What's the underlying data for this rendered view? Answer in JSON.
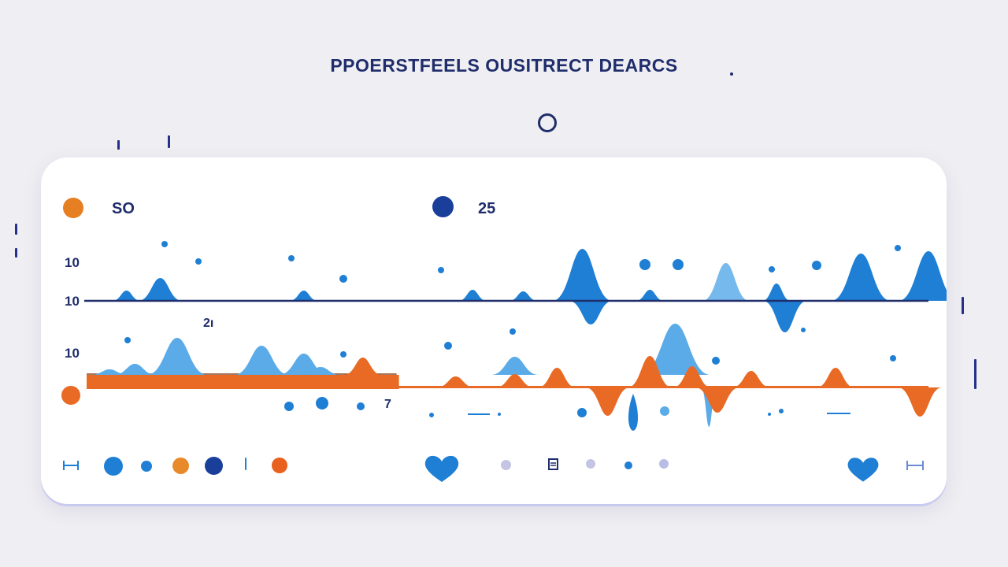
{
  "header": {
    "title": "PPOERSTFEELS OUSITRECT DEARCS",
    "title_suffix": "."
  },
  "legend": [
    {
      "label": "SO",
      "color": "#e67e22"
    },
    {
      "label": "25",
      "color": "#1a3f9a"
    }
  ],
  "axis_labels": [
    "10",
    "10",
    "10"
  ],
  "annotations": [
    "2ı",
    "7"
  ],
  "colors": {
    "title": "#1f2d6b",
    "blue": "#1e7fd4",
    "light_blue": "#5aabe8",
    "pale_blue": "#76b9ec",
    "orange": "#e86a24",
    "navy": "#1a3f9a",
    "axis": "#1f2d6b",
    "card": "#ffffff",
    "background": "#efeef2"
  },
  "chart_data": {
    "type": "area",
    "title": "PPOERSTFEELS OUSITRECT DEARCS",
    "y_tick_labels": [
      "10",
      "10",
      "10"
    ],
    "legend_placement": "top-left",
    "x_range": [
      0,
      100
    ],
    "grid": false,
    "series": [
      {
        "name": "SO",
        "color": "#e86a24",
        "baseline_band": true,
        "peaks": [
          {
            "x": 33,
            "h": 22
          },
          {
            "x": 44,
            "h": 14
          },
          {
            "x": 51,
            "h": 17
          },
          {
            "x": 56,
            "h": 25
          },
          {
            "x": 67,
            "h": 40
          },
          {
            "x": 72,
            "h": 27
          },
          {
            "x": 79,
            "h": 21
          },
          {
            "x": 89,
            "h": 25
          },
          {
            "x": 62,
            "h": -36
          },
          {
            "x": 75,
            "h": -32
          },
          {
            "x": 99,
            "h": -37
          }
        ]
      },
      {
        "name": "25",
        "color": "#1e7fd4",
        "peaks": [
          {
            "x": 5,
            "h": 13
          },
          {
            "x": 9,
            "h": 29
          },
          {
            "x": 26,
            "h": 13
          },
          {
            "x": 46,
            "h": 14
          },
          {
            "x": 52,
            "h": 12
          },
          {
            "x": 59,
            "h": 66
          },
          {
            "x": 67,
            "h": 14
          },
          {
            "x": 82,
            "h": 22
          },
          {
            "x": 92,
            "h": 60
          },
          {
            "x": 100,
            "h": 63
          },
          {
            "x": 60,
            "h": -30
          },
          {
            "x": 83,
            "h": -40
          }
        ]
      },
      {
        "name": "",
        "color": "#5aabe8",
        "peaks": [
          {
            "x": 3,
            "h": 7
          },
          {
            "x": 6,
            "h": 14
          },
          {
            "x": 11,
            "h": 47
          },
          {
            "x": 21,
            "h": 37
          },
          {
            "x": 26,
            "h": 27
          },
          {
            "x": 28,
            "h": 10
          },
          {
            "x": 51,
            "h": 23
          },
          {
            "x": 70,
            "h": 65
          },
          {
            "x": 74,
            "h": -50
          }
        ]
      },
      {
        "name": "",
        "color": "#76b9ec",
        "peaks": [
          {
            "x": 76,
            "h": 48
          }
        ]
      }
    ]
  },
  "controls": {
    "left_bracket_icon": "range-bracket-icon",
    "right_bracket_icon": "range-bracket-icon",
    "heart_icons": [
      "heart-icon",
      "heart-icon"
    ],
    "square_icon": "page-icon"
  }
}
